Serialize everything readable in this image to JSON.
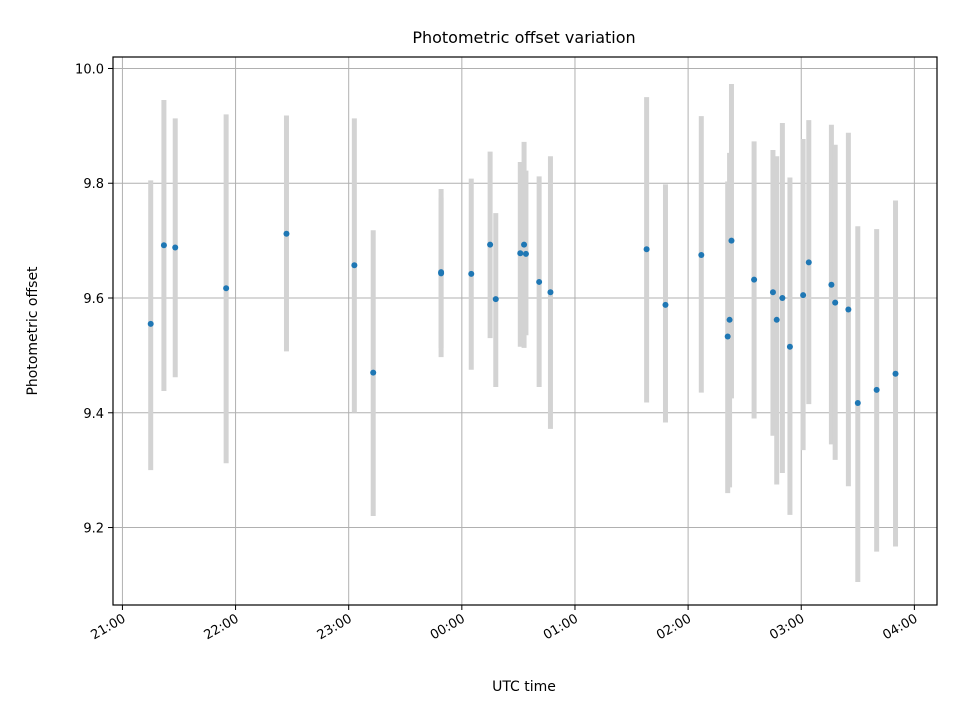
{
  "chart_data": {
    "type": "scatter",
    "title": "Photometric offset variation",
    "xlabel": "UTC time",
    "ylabel": "Photometric offset",
    "x_tick_labels": [
      "21:00",
      "22:00",
      "23:00",
      "00:00",
      "01:00",
      "02:00",
      "03:00",
      "04:00"
    ],
    "y_tick_labels": [
      "9.2",
      "9.4",
      "9.6",
      "9.8",
      "10.0"
    ],
    "y_ticks": [
      9.2,
      9.4,
      9.6,
      9.8,
      10.0
    ],
    "xlim": [
      "20:55",
      "04:12"
    ],
    "ylim": [
      9.065,
      10.02
    ],
    "grid": true,
    "marker_color": "#1f77b4",
    "errorbar_color": "#d3d3d3",
    "points": [
      {
        "x": "21:15",
        "y": 9.555,
        "ylow": 9.3,
        "yhigh": 9.805
      },
      {
        "x": "21:22",
        "y": 9.692,
        "ylow": 9.438,
        "yhigh": 9.945
      },
      {
        "x": "21:28",
        "y": 9.688,
        "ylow": 9.462,
        "yhigh": 9.913
      },
      {
        "x": "21:55",
        "y": 9.617,
        "ylow": 9.312,
        "yhigh": 9.92
      },
      {
        "x": "22:27",
        "y": 9.712,
        "ylow": 9.507,
        "yhigh": 9.918
      },
      {
        "x": "23:03",
        "y": 9.657,
        "ylow": 9.4,
        "yhigh": 9.913
      },
      {
        "x": "23:13",
        "y": 9.47,
        "ylow": 9.22,
        "yhigh": 9.718
      },
      {
        "x": "23:49",
        "y": 9.643,
        "ylow": 9.497,
        "yhigh": 9.79
      },
      {
        "x": "23:49",
        "y": 9.645,
        "ylow": 9.513,
        "yhigh": 9.775
      },
      {
        "x": "00:05",
        "y": 9.642,
        "ylow": 9.475,
        "yhigh": 9.808
      },
      {
        "x": "00:15",
        "y": 9.693,
        "ylow": 9.53,
        "yhigh": 9.855
      },
      {
        "x": "00:18",
        "y": 9.598,
        "ylow": 9.445,
        "yhigh": 9.748
      },
      {
        "x": "00:31",
        "y": 9.678,
        "ylow": 9.515,
        "yhigh": 9.837
      },
      {
        "x": "00:33",
        "y": 9.693,
        "ylow": 9.513,
        "yhigh": 9.872
      },
      {
        "x": "00:34",
        "y": 9.677,
        "ylow": 9.535,
        "yhigh": 9.822
      },
      {
        "x": "00:41",
        "y": 9.628,
        "ylow": 9.445,
        "yhigh": 9.812
      },
      {
        "x": "00:47",
        "y": 9.61,
        "ylow": 9.372,
        "yhigh": 9.847
      },
      {
        "x": "01:38",
        "y": 9.685,
        "ylow": 9.418,
        "yhigh": 9.95
      },
      {
        "x": "01:48",
        "y": 9.588,
        "ylow": 9.383,
        "yhigh": 9.798
      },
      {
        "x": "02:07",
        "y": 9.675,
        "ylow": 9.435,
        "yhigh": 9.917
      },
      {
        "x": "02:21",
        "y": 9.533,
        "ylow": 9.26,
        "yhigh": 9.803
      },
      {
        "x": "02:22",
        "y": 9.562,
        "ylow": 9.27,
        "yhigh": 9.853
      },
      {
        "x": "02:23",
        "y": 9.7,
        "ylow": 9.425,
        "yhigh": 9.973
      },
      {
        "x": "02:35",
        "y": 9.632,
        "ylow": 9.39,
        "yhigh": 9.873
      },
      {
        "x": "02:45",
        "y": 9.61,
        "ylow": 9.36,
        "yhigh": 9.858
      },
      {
        "x": "02:47",
        "y": 9.562,
        "ylow": 9.275,
        "yhigh": 9.847
      },
      {
        "x": "02:50",
        "y": 9.6,
        "ylow": 9.295,
        "yhigh": 9.905
      },
      {
        "x": "02:54",
        "y": 9.515,
        "ylow": 9.222,
        "yhigh": 9.81
      },
      {
        "x": "03:01",
        "y": 9.605,
        "ylow": 9.335,
        "yhigh": 9.877
      },
      {
        "x": "03:04",
        "y": 9.662,
        "ylow": 9.415,
        "yhigh": 9.91
      },
      {
        "x": "03:16",
        "y": 9.623,
        "ylow": 9.345,
        "yhigh": 9.902
      },
      {
        "x": "03:18",
        "y": 9.592,
        "ylow": 9.318,
        "yhigh": 9.867
      },
      {
        "x": "03:25",
        "y": 9.58,
        "ylow": 9.272,
        "yhigh": 9.888
      },
      {
        "x": "03:30",
        "y": 9.417,
        "ylow": 9.105,
        "yhigh": 9.725
      },
      {
        "x": "03:40",
        "y": 9.44,
        "ylow": 9.158,
        "yhigh": 9.72
      },
      {
        "x": "03:50",
        "y": 9.468,
        "ylow": 9.167,
        "yhigh": 9.77
      }
    ]
  }
}
